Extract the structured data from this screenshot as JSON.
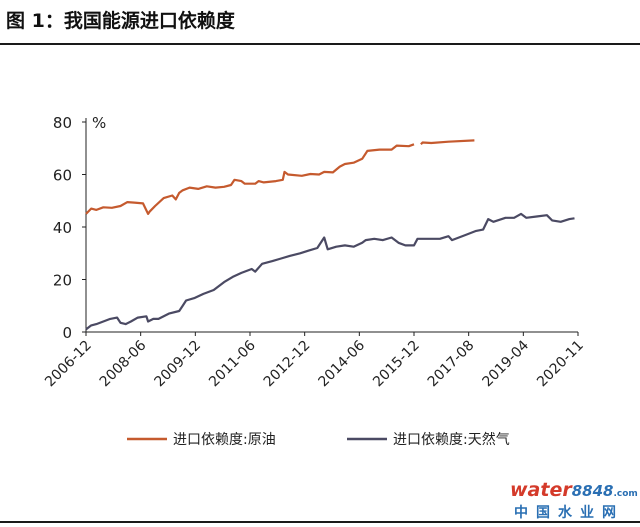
{
  "figure": {
    "title": "图 1：我国能源进口依赖度"
  },
  "chart_data": {
    "type": "line",
    "title": "图 1：我国能源进口依赖度",
    "ylabel": "%",
    "xlabel": "",
    "ylim": [
      0,
      80
    ],
    "yticks": [
      "0",
      "20",
      "40",
      "60",
      "80"
    ],
    "xticks": [
      "2006-12",
      "2008-06",
      "2009-12",
      "2011-06",
      "2012-12",
      "2014-06",
      "2015-12",
      "2017-08",
      "2019-04",
      "2020-11"
    ],
    "legend_position": "bottom",
    "grid": false,
    "series": [
      {
        "name": "进口依赖度:原油",
        "color": "#c55a2e",
        "values": [
          [
            0,
            45
          ],
          [
            0.3,
            47
          ],
          [
            0.6,
            46.5
          ],
          [
            1,
            47.5
          ],
          [
            1.5,
            47.3
          ],
          [
            2,
            48
          ],
          [
            2.4,
            49.5
          ],
          [
            2.8,
            49.3
          ],
          [
            3.3,
            49
          ],
          [
            3.6,
            45
          ],
          [
            3.7,
            46
          ],
          [
            4,
            48
          ],
          [
            4.5,
            51
          ],
          [
            5,
            52
          ],
          [
            5.2,
            50.5
          ],
          [
            5.4,
            53
          ],
          [
            5.6,
            54
          ],
          [
            6,
            55
          ],
          [
            6.5,
            54.5
          ],
          [
            7,
            55.5
          ],
          [
            7.5,
            55
          ],
          [
            8,
            55.3
          ],
          [
            8.4,
            56
          ],
          [
            8.6,
            58
          ],
          [
            9,
            57.5
          ],
          [
            9.2,
            56.5
          ],
          [
            9.8,
            56.5
          ],
          [
            10,
            57.5
          ],
          [
            10.3,
            57
          ],
          [
            11,
            57.5
          ],
          [
            11.4,
            58
          ],
          [
            11.5,
            61
          ],
          [
            11.7,
            60
          ],
          [
            12.5,
            59.5
          ],
          [
            13,
            60.2
          ],
          [
            13.5,
            60
          ],
          [
            13.8,
            61
          ],
          [
            14.3,
            60.8
          ],
          [
            14.7,
            63
          ],
          [
            15,
            64
          ],
          [
            15.5,
            64.5
          ],
          [
            16,
            66
          ],
          [
            16.3,
            69
          ],
          [
            17,
            69.5
          ],
          [
            17.7,
            69.5
          ],
          [
            18,
            71
          ],
          [
            18.7,
            70.8
          ],
          [
            19,
            71.5
          ],
          [
            19.1,
            null
          ],
          [
            19.4,
            71.5
          ],
          [
            19.5,
            72.2
          ],
          [
            20,
            72
          ],
          [
            21,
            72.5
          ],
          [
            22.5,
            73
          ]
        ]
      },
      {
        "name": "进口依赖度:天然气",
        "color": "#4b4a63",
        "values": [
          [
            0,
            1
          ],
          [
            0.3,
            2.5
          ],
          [
            0.6,
            3
          ],
          [
            1,
            4
          ],
          [
            1.4,
            5
          ],
          [
            1.8,
            5.5
          ],
          [
            2,
            3.5
          ],
          [
            2.3,
            3
          ],
          [
            2.6,
            4
          ],
          [
            3,
            5.5
          ],
          [
            3.5,
            6
          ],
          [
            3.6,
            4
          ],
          [
            3.9,
            5
          ],
          [
            4.2,
            5
          ],
          [
            4.8,
            7
          ],
          [
            5.4,
            8
          ],
          [
            5.6,
            10
          ],
          [
            5.8,
            12
          ],
          [
            6.3,
            13
          ],
          [
            6.8,
            14.5
          ],
          [
            7.4,
            16
          ],
          [
            8,
            19
          ],
          [
            8.5,
            21
          ],
          [
            9,
            22.5
          ],
          [
            9.6,
            24
          ],
          [
            9.8,
            23
          ],
          [
            10.2,
            26
          ],
          [
            10.8,
            27
          ],
          [
            11.3,
            28
          ],
          [
            11.8,
            29
          ],
          [
            12.4,
            30
          ],
          [
            12.9,
            31
          ],
          [
            13.4,
            32
          ],
          [
            13.8,
            36
          ],
          [
            14,
            31.5
          ],
          [
            14.5,
            32.5
          ],
          [
            15,
            33
          ],
          [
            15.5,
            32.5
          ],
          [
            16,
            34
          ],
          [
            16.2,
            35
          ],
          [
            16.7,
            35.5
          ],
          [
            17.2,
            35
          ],
          [
            17.7,
            36
          ],
          [
            18.1,
            34
          ],
          [
            18.5,
            33
          ],
          [
            19,
            33
          ],
          [
            19.2,
            35.5
          ],
          [
            19.7,
            35.5
          ],
          [
            20.5,
            35.5
          ],
          [
            21,
            36.5
          ],
          [
            21.2,
            35
          ],
          [
            22,
            37
          ],
          [
            22.6,
            38.5
          ],
          [
            23,
            39
          ],
          [
            23.3,
            43
          ],
          [
            23.6,
            42
          ],
          [
            24.3,
            43.5
          ],
          [
            24.8,
            43.5
          ],
          [
            25.2,
            45
          ],
          [
            25.5,
            43.5
          ],
          [
            26.1,
            44
          ],
          [
            26.7,
            44.5
          ],
          [
            27,
            42.5
          ],
          [
            27.5,
            42
          ],
          [
            28,
            43
          ],
          [
            28.3,
            43.3
          ]
        ]
      }
    ]
  },
  "watermark": {
    "logo_main": "water",
    "logo_num": "8848",
    "logo_suffix": ".com",
    "sub": "中国水业网"
  }
}
